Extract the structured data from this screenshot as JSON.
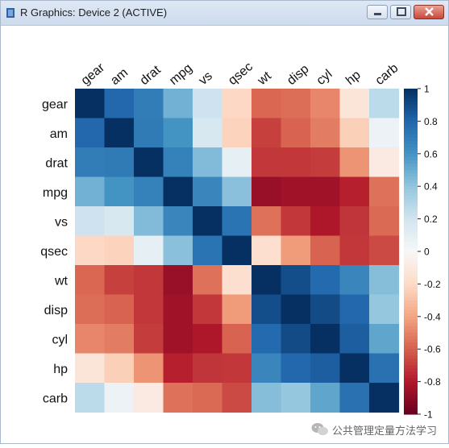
{
  "window": {
    "title": "R Graphics: Device 2 (ACTIVE)",
    "buttons": [
      "minimize-icon",
      "maximize-icon",
      "close-icon"
    ]
  },
  "chart_data": {
    "type": "heatmap",
    "row_labels": [
      "gear",
      "am",
      "drat",
      "mpg",
      "vs",
      "qsec",
      "wt",
      "disp",
      "cyl",
      "hp",
      "carb"
    ],
    "col_labels": [
      "gear",
      "am",
      "drat",
      "mpg",
      "vs",
      "qsec",
      "wt",
      "disp",
      "cyl",
      "hp",
      "carb"
    ],
    "values": [
      [
        1.0,
        0.79,
        0.7,
        0.48,
        0.21,
        -0.21,
        -0.58,
        -0.56,
        -0.49,
        -0.13,
        0.27
      ],
      [
        0.79,
        1.0,
        0.71,
        0.6,
        0.17,
        -0.23,
        -0.69,
        -0.59,
        -0.52,
        -0.24,
        0.06
      ],
      [
        0.7,
        0.71,
        1.0,
        0.68,
        0.44,
        0.09,
        -0.71,
        -0.71,
        -0.7,
        -0.45,
        -0.09
      ],
      [
        0.48,
        0.6,
        0.68,
        1.0,
        0.66,
        0.42,
        -0.87,
        -0.85,
        -0.85,
        -0.78,
        -0.55
      ],
      [
        0.21,
        0.17,
        0.44,
        0.66,
        1.0,
        0.74,
        -0.55,
        -0.71,
        -0.81,
        -0.72,
        -0.57
      ],
      [
        -0.21,
        -0.23,
        0.09,
        0.42,
        0.74,
        1.0,
        -0.17,
        -0.43,
        -0.59,
        -0.71,
        -0.66
      ],
      [
        -0.58,
        -0.69,
        -0.71,
        -0.87,
        -0.55,
        -0.17,
        1.0,
        0.89,
        0.78,
        0.66,
        0.43
      ],
      [
        -0.56,
        -0.59,
        -0.71,
        -0.85,
        -0.71,
        -0.43,
        0.89,
        1.0,
        0.9,
        0.79,
        0.39
      ],
      [
        -0.49,
        -0.52,
        -0.7,
        -0.85,
        -0.81,
        -0.59,
        0.78,
        0.9,
        1.0,
        0.83,
        0.53
      ],
      [
        -0.13,
        -0.24,
        -0.45,
        -0.78,
        -0.72,
        -0.71,
        0.66,
        0.79,
        0.83,
        1.0,
        0.75
      ],
      [
        0.27,
        0.06,
        -0.09,
        -0.55,
        -0.57,
        -0.66,
        0.43,
        0.39,
        0.53,
        0.75,
        1.0
      ]
    ],
    "color_scale": {
      "min": -1,
      "max": 1,
      "stops": [
        "#67001f",
        "#b2182b",
        "#d6604d",
        "#f4a582",
        "#fddbc7",
        "#f7f7f7",
        "#d1e5f0",
        "#92c5de",
        "#4393c3",
        "#2166ac",
        "#053061"
      ]
    },
    "colorbar_ticks": [
      "1",
      "0.8",
      "0.6",
      "0.4",
      "0.2",
      "0",
      "-0.2",
      "-0.4",
      "-0.6",
      "-0.8",
      "-1"
    ]
  },
  "watermark": {
    "text": "公共管理定量方法学习"
  }
}
